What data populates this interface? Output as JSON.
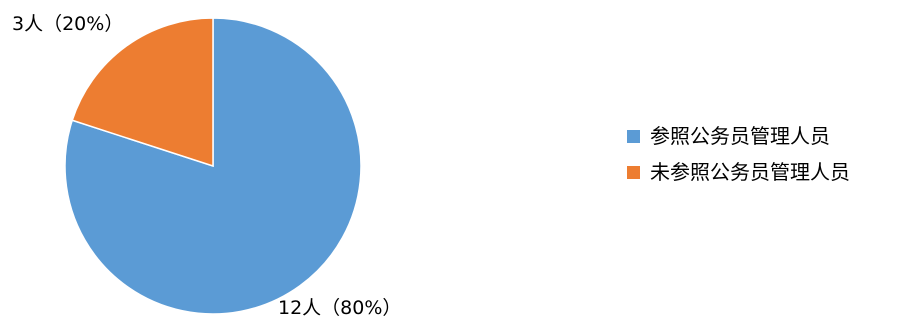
{
  "chart_data": {
    "type": "pie",
    "title": "",
    "categories": [
      "参照公务员管理人员",
      "未参照公务员管理人员"
    ],
    "values": [
      12,
      3
    ],
    "percentages": [
      80,
      20
    ],
    "colors": [
      "#5B9BD5",
      "#ED7D31"
    ],
    "data_labels": [
      "12人（80%）",
      "3人（20%）"
    ],
    "legend": {
      "position": "right",
      "items": [
        {
          "label": "参照公务员管理人员",
          "color": "#5B9BD5"
        },
        {
          "label": "未参照公务员管理人员",
          "color": "#ED7D31"
        }
      ]
    }
  }
}
